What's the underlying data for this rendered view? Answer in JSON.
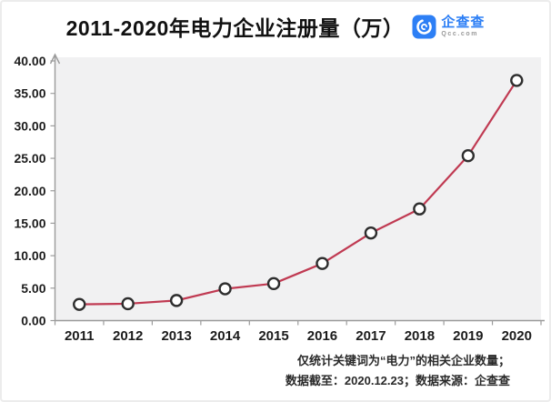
{
  "header": {
    "title": "2011-2020年电力企业注册量（万）",
    "logo": {
      "name": "企查查",
      "domain": "Qcc.com",
      "brand_color": "#2d7ff5"
    }
  },
  "chart_data": {
    "type": "line",
    "title": "2011-2020年电力企业注册量（万）",
    "categories": [
      "2011",
      "2012",
      "2013",
      "2014",
      "2015",
      "2016",
      "2017",
      "2018",
      "2019",
      "2020"
    ],
    "values": [
      2.5,
      2.6,
      3.1,
      4.9,
      5.7,
      8.8,
      13.5,
      17.2,
      25.4,
      37.0
    ],
    "ylim": [
      0,
      40
    ],
    "yticks": [
      0,
      5,
      10,
      15,
      20,
      25,
      30,
      35,
      40
    ],
    "ytick_labels": [
      "0.00",
      "5.00",
      "10.00",
      "15.00",
      "20.00",
      "25.00",
      "30.00",
      "35.00",
      "40.00"
    ],
    "xlabel": "",
    "ylabel": "",
    "grid": false,
    "legend": "none",
    "line_color": "#c03a52",
    "marker": "open-circle",
    "marker_stroke": "#2e2e2e",
    "plot_background": "#f1f1f2",
    "axis_color": "#9b9b9b"
  },
  "footnotes": {
    "line1": "仅统计关键词为“电力”的相关企业数量；",
    "line2": "数据截至：2020.12.23；数据来源：企查查"
  }
}
